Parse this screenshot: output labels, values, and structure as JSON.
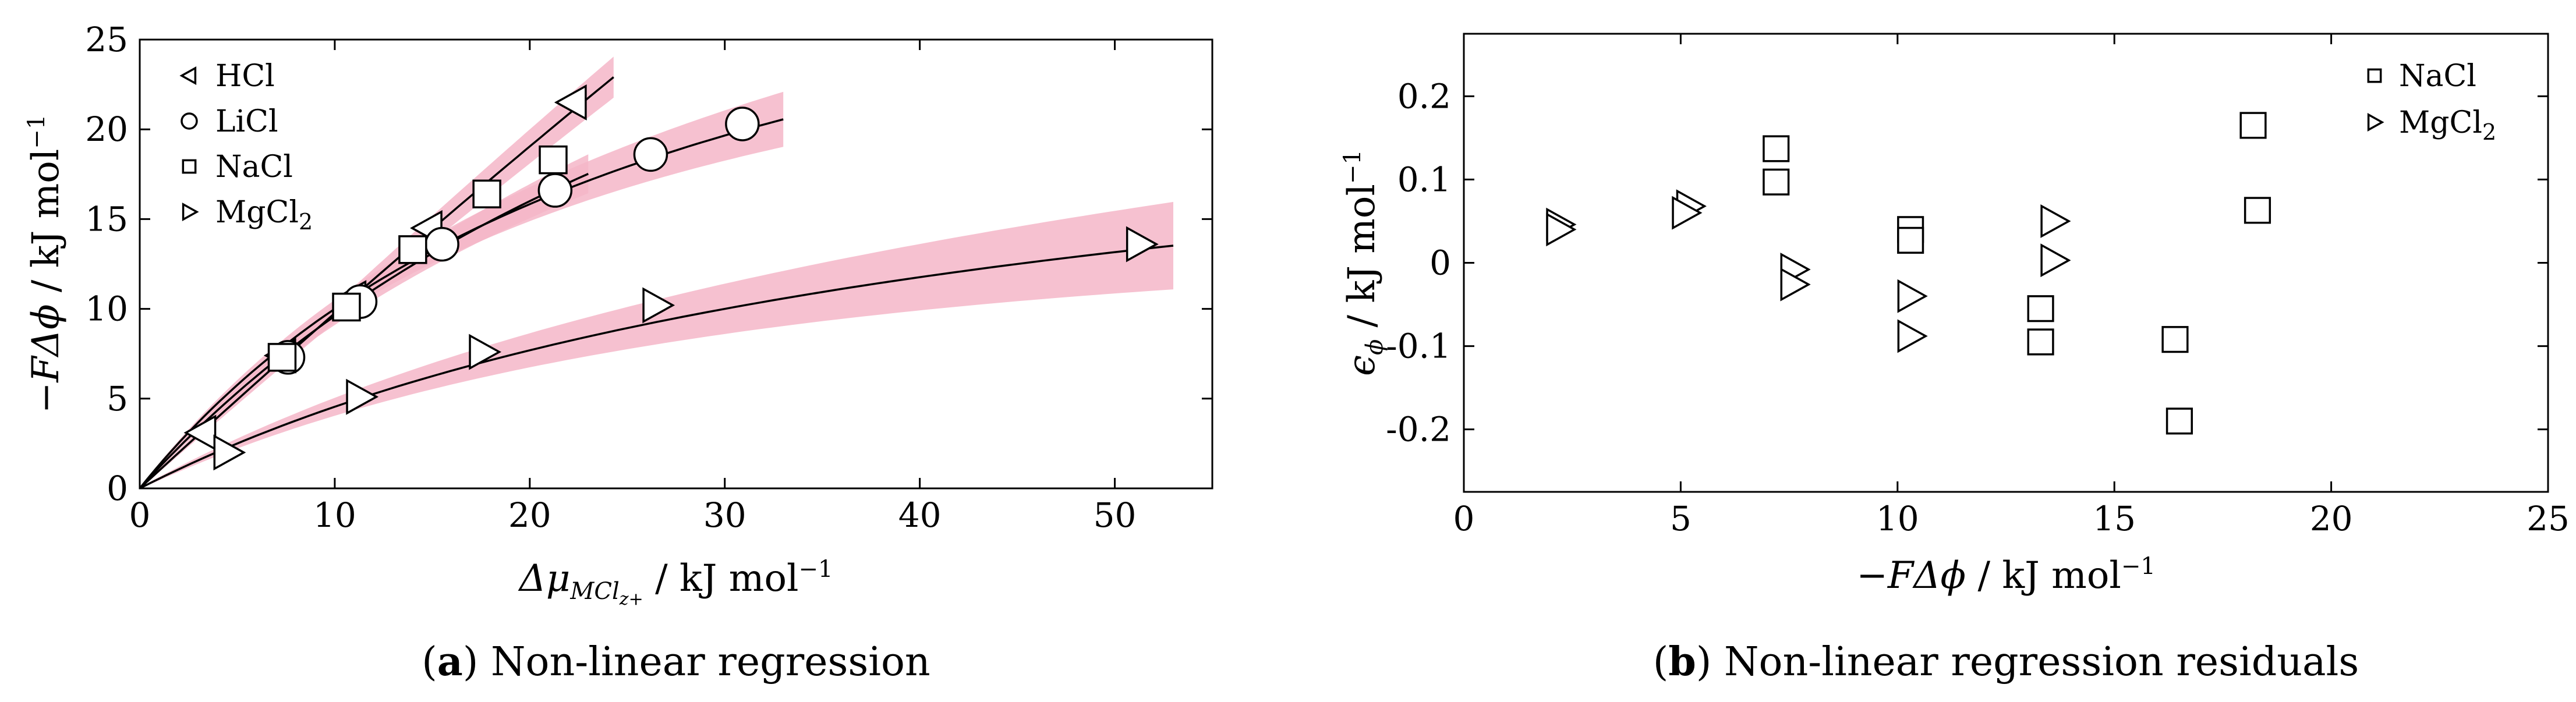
{
  "figure": {
    "captions": [
      {
        "tag": "a",
        "text": "Non-linear regression"
      },
      {
        "tag": "b",
        "text": "Non-linear regression residuals"
      }
    ]
  },
  "chart_data": [
    {
      "type": "scatter",
      "panel": "a",
      "xlabel": "Δμ",
      "xlabel_sub": "MCl",
      "xlabel_subsub": "z+",
      "xlabel_unit": " / kJ mol",
      "xlabel_unit_exp": "−1",
      "ylabel": "−FΔϕ",
      "ylabel_unit": " / kJ mol",
      "ylabel_unit_exp": "−1",
      "xlim": [
        0,
        55
      ],
      "ylim": [
        0,
        25
      ],
      "xticks": [
        0,
        10,
        20,
        30,
        40,
        50
      ],
      "yticks": [
        0,
        5,
        10,
        15,
        20,
        25
      ],
      "legend_position": "top-left",
      "band_color": "#f4b6c8",
      "series": [
        {
          "name": "HCl",
          "marker": "triangle-left",
          "x": [
            3.2,
            7.3,
            10.9,
            14.8,
            22.2
          ],
          "y": [
            3.1,
            7.4,
            10.6,
            14.5,
            21.5
          ],
          "fit": {
            "V": 400,
            "K": 400,
            "xmax": 24.3
          }
        },
        {
          "name": "LiCl",
          "marker": "circle",
          "x": [
            7.6,
            11.3,
            15.5,
            21.3,
            26.2,
            30.9
          ],
          "y": [
            7.3,
            10.4,
            13.6,
            16.6,
            18.6,
            20.3
          ],
          "fit": {
            "V": 38,
            "K": 28,
            "xmax": 33
          }
        },
        {
          "name": "NaCl",
          "marker": "square",
          "x": [
            7.3,
            10.6,
            14.0,
            17.8,
            21.2
          ],
          "y": [
            7.3,
            10.1,
            13.3,
            16.4,
            18.3
          ],
          "fit": {
            "V": 48,
            "K": 40,
            "xmax": 23
          }
        },
        {
          "name": "MgCl",
          "name_sub": "2",
          "marker": "triangle-right",
          "x": [
            4.5,
            11.3,
            17.6,
            26.5,
            51.3
          ],
          "y": [
            2.0,
            5.1,
            7.6,
            10.2,
            13.6
          ],
          "fit": {
            "V": 25,
            "K": 45,
            "xmax": 53
          }
        }
      ]
    },
    {
      "type": "scatter",
      "panel": "b",
      "xlabel": "−FΔϕ",
      "xlabel_unit": " / kJ mol",
      "xlabel_unit_exp": "−1",
      "ylabel": "ϵ",
      "ylabel_sub": "ϕ",
      "ylabel_unit": " / kJ mol",
      "ylabel_unit_exp": "−1",
      "xlim": [
        0,
        25
      ],
      "ylim": [
        -0.275,
        0.275
      ],
      "xticks": [
        0,
        5,
        10,
        15,
        20,
        25
      ],
      "yticks": [
        -0.2,
        -0.1,
        0,
        0.1,
        0.2
      ],
      "ytick_labels": [
        "-0.2",
        "-0.1",
        "0",
        "0.1",
        "0.2"
      ],
      "legend_position": "top-right",
      "series": [
        {
          "name": "NaCl",
          "marker": "square",
          "x": [
            7.2,
            7.2,
            10.3,
            10.3,
            13.3,
            13.3,
            16.4,
            16.5,
            18.2,
            18.3
          ],
          "y": [
            0.137,
            0.097,
            0.04,
            0.027,
            -0.055,
            -0.095,
            -0.092,
            -0.19,
            0.165,
            0.063
          ]
        },
        {
          "name": "MgCl",
          "name_sub": "2",
          "marker": "triangle-right",
          "x": [
            2.2,
            2.2,
            5.2,
            5.1,
            7.6,
            7.6,
            10.3,
            10.3,
            13.6,
            13.6
          ],
          "y": [
            0.046,
            0.04,
            0.068,
            0.06,
            -0.008,
            -0.026,
            -0.04,
            -0.088,
            0.05,
            0.003
          ]
        }
      ]
    }
  ]
}
